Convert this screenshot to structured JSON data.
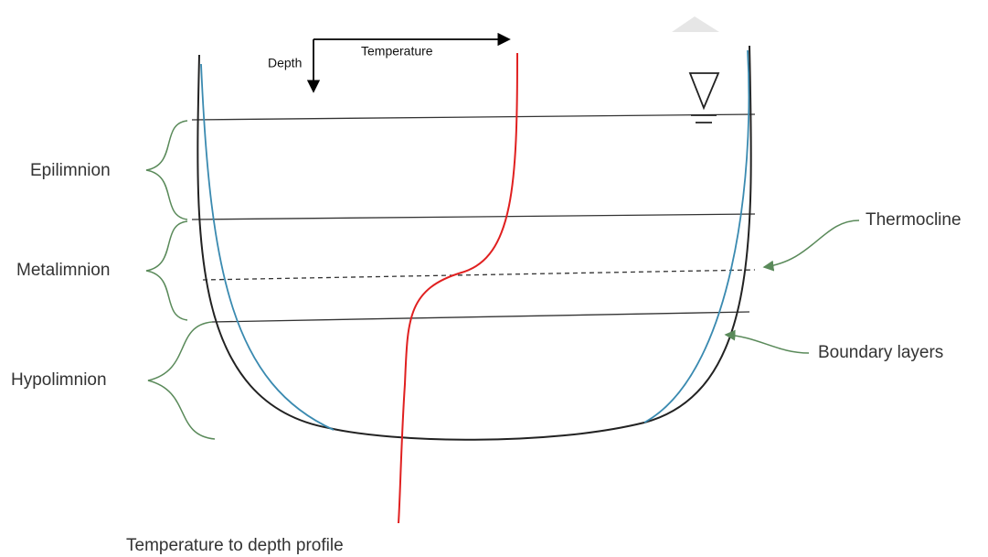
{
  "axes": {
    "vertical": "Depth",
    "horizontal": "Temperature"
  },
  "layers": [
    "Epilimnion",
    "Metalimnion",
    "Hypolimnion"
  ],
  "annotations": {
    "thermocline": "Thermocline",
    "boundary": "Boundary layers",
    "profile": "Temperature to depth profile"
  }
}
